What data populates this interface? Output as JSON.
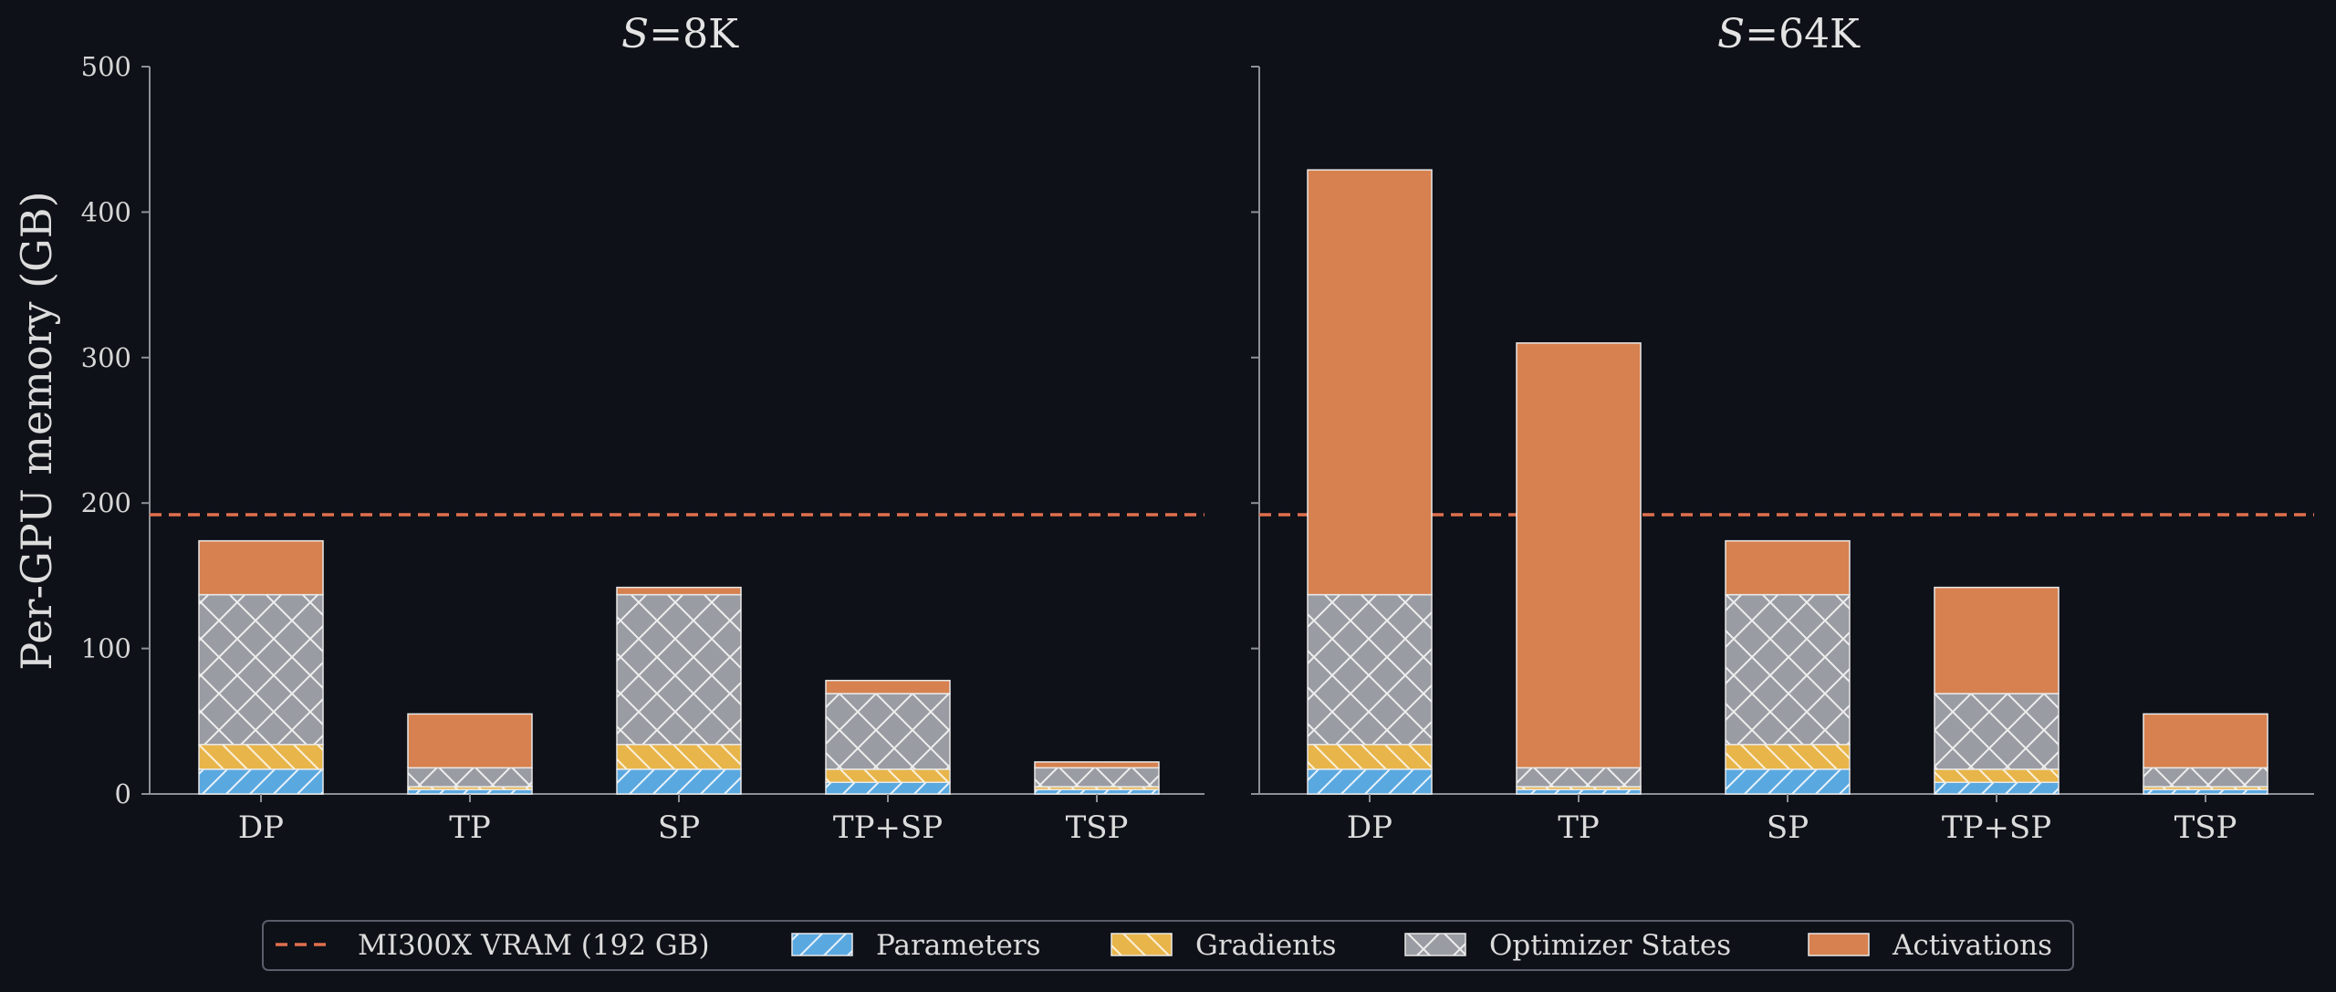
{
  "chart_data": {
    "type": "bar",
    "stacked": true,
    "ylabel": "Per-GPU memory (GB)",
    "ylim": [
      0,
      500
    ],
    "yticks": [
      0,
      100,
      200,
      300,
      400,
      500
    ],
    "categories": [
      "DP",
      "TP",
      "SP",
      "TP+SP",
      "TSP"
    ],
    "reference_line": {
      "label": "MI300X VRAM (192 GB)",
      "value": 192,
      "color": "#e0704e",
      "style": "dashed"
    },
    "legend_position": "bottom-center",
    "grid": false,
    "series_meta": [
      {
        "name": "Parameters",
        "color": "#5aa8e0",
        "hatch": "diagonal"
      },
      {
        "name": "Gradients",
        "color": "#e8b54a",
        "hatch": "back-diagonal"
      },
      {
        "name": "Optimizer States",
        "color": "#9a9ca3",
        "hatch": "crosshatch"
      },
      {
        "name": "Activations",
        "color": "#d6814f",
        "hatch": "none"
      }
    ],
    "panels": [
      {
        "title_italic": "S",
        "title_rest": "=8K",
        "series": [
          {
            "name": "Parameters",
            "values": [
              17,
              3,
              17,
              8,
              3
            ]
          },
          {
            "name": "Gradients",
            "values": [
              17,
              2,
              17,
              9,
              2
            ]
          },
          {
            "name": "Optimizer States",
            "values": [
              103,
              13,
              103,
              52,
              13
            ]
          },
          {
            "name": "Activations",
            "values": [
              37,
              37,
              5,
              9,
              4
            ]
          }
        ]
      },
      {
        "title_italic": "S",
        "title_rest": "=64K",
        "series": [
          {
            "name": "Parameters",
            "values": [
              17,
              3,
              17,
              8,
              3
            ]
          },
          {
            "name": "Gradients",
            "values": [
              17,
              2,
              17,
              9,
              2
            ]
          },
          {
            "name": "Optimizer States",
            "values": [
              103,
              13,
              103,
              52,
              13
            ]
          },
          {
            "name": "Activations",
            "values": [
              292,
              292,
              37,
              73,
              37
            ]
          }
        ]
      }
    ]
  }
}
